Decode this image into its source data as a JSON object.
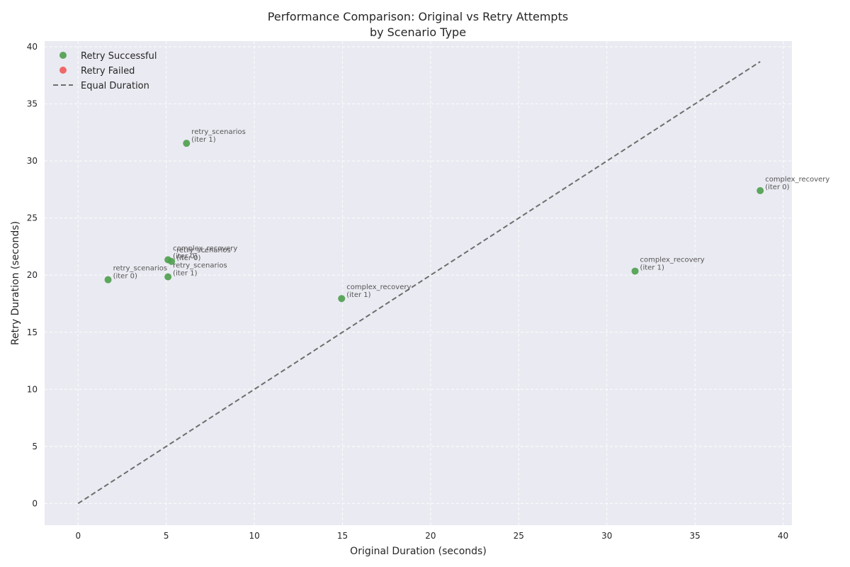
{
  "chart_data": {
    "type": "scatter",
    "title_lines": [
      "Performance Comparison: Original vs Retry Attempts",
      "by Scenario Type"
    ],
    "xlabel": "Original Duration (seconds)",
    "ylabel": "Retry Duration (seconds)",
    "xlim": [
      -1.9,
      40.5
    ],
    "ylim": [
      -1.9,
      40.5
    ],
    "xticks": [
      0,
      5,
      10,
      15,
      20,
      25,
      30,
      35,
      40
    ],
    "yticks": [
      0,
      5,
      10,
      15,
      20,
      25,
      30,
      35,
      40
    ],
    "grid": true,
    "legend_position": "top-left",
    "colors": {
      "background": "#eaeaf2",
      "success": "#4c9f4c",
      "failed": "#f05a5a",
      "reference": "#6e6e6e"
    },
    "series": [
      {
        "name": "Retry Successful",
        "color": "#4c9f4c",
        "points": [
          {
            "x": 6.15,
            "y": 31.55,
            "label": [
              "retry_scenarios",
              "(iter 1)"
            ]
          },
          {
            "x": 38.7,
            "y": 27.4,
            "label": [
              "complex_recovery",
              "(iter 0)"
            ]
          },
          {
            "x": 5.1,
            "y": 21.35,
            "label": [
              "complex_recovery",
              "(iter 0)"
            ]
          },
          {
            "x": 5.3,
            "y": 21.2,
            "label": [
              "retry_scenarios",
              "(iter 0)"
            ]
          },
          {
            "x": 31.6,
            "y": 20.35,
            "label": [
              "complex_recovery",
              "(iter 1)"
            ]
          },
          {
            "x": 5.1,
            "y": 19.85,
            "label": [
              "retry_scenarios",
              "(iter 1)"
            ]
          },
          {
            "x": 1.7,
            "y": 19.6,
            "label": [
              "retry_scenarios",
              "(iter 0)"
            ]
          },
          {
            "x": 14.95,
            "y": 17.95,
            "label": [
              "complex_recovery",
              "(iter 1)"
            ]
          }
        ]
      },
      {
        "name": "Retry Failed",
        "color": "#f05a5a",
        "points": []
      }
    ],
    "reference_line": {
      "name": "Equal Duration",
      "from": [
        0,
        0
      ],
      "to": [
        38.7,
        38.7
      ]
    }
  }
}
